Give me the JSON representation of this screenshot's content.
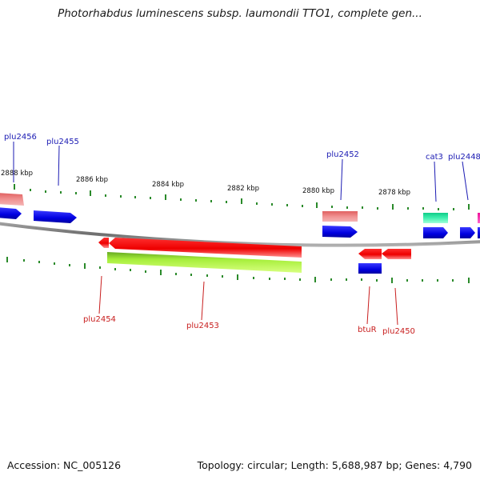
{
  "title": "Photorhabdus luminescens subsp. laumondii TTO1, complete gen...",
  "footer": {
    "accession": "Accession: NC_005126",
    "summary": "Topology: circular; Length: 5,688,987 bp; Genes: 4,790"
  },
  "scale_labels": [
    "2888 kbp",
    "2886 kbp",
    "2884 kbp",
    "2882 kbp",
    "2880 kbp",
    "2878 kbp"
  ],
  "colors": {
    "forward_cds": "#1a1aee",
    "reverse_cds": "#ee1a1a",
    "rna_pink": "#e88080",
    "misc_green": "#22dd99",
    "highlight_lime": "#aaee44",
    "backbone": "#808080",
    "tick": "#2a8a2a",
    "label_blue": "#1b1bb3",
    "label_red": "#c81e1e"
  },
  "genes_top": [
    "plu2456",
    "plu2455",
    "plu2452",
    "cat3",
    "plu2448"
  ],
  "genes_bottom": [
    "plu2454",
    "plu2453",
    "btuR",
    "plu2450"
  ]
}
